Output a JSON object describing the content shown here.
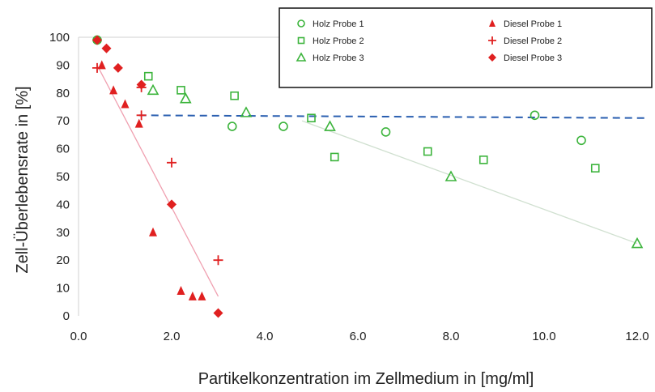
{
  "chart_data": {
    "type": "scatter",
    "title": "",
    "xlabel": "Partikelkonzentration im Zellmedium in [mg/ml]",
    "ylabel": "Zell-Überlebensrate in [%]",
    "xlim": [
      0,
      12
    ],
    "ylim": [
      0,
      100
    ],
    "x_ticks": [
      "0.0",
      "2.0",
      "4.0",
      "6.0",
      "8.0",
      "10.0",
      "12.0"
    ],
    "y_ticks": [
      "0",
      "10",
      "20",
      "30",
      "40",
      "50",
      "60",
      "70",
      "80",
      "90",
      "100"
    ],
    "grid": false,
    "legend": "top-right",
    "series": [
      {
        "name": "Holz Probe 1",
        "marker": "circle-open",
        "color": "#3cb43c",
        "points": [
          [
            0.4,
            99
          ],
          [
            3.3,
            68
          ],
          [
            4.4,
            68
          ],
          [
            6.6,
            66
          ],
          [
            9.8,
            72
          ],
          [
            10.8,
            63
          ]
        ]
      },
      {
        "name": "Holz Probe 2",
        "marker": "square-open",
        "color": "#3cb43c",
        "points": [
          [
            1.5,
            86
          ],
          [
            2.2,
            81
          ],
          [
            3.35,
            79
          ],
          [
            5.0,
            71
          ],
          [
            5.5,
            57
          ],
          [
            7.5,
            59
          ],
          [
            8.7,
            56
          ],
          [
            11.1,
            53
          ]
        ]
      },
      {
        "name": "Holz Probe 3",
        "marker": "triangle-open",
        "color": "#3cb43c",
        "points": [
          [
            1.6,
            81
          ],
          [
            2.3,
            78
          ],
          [
            3.6,
            73
          ],
          [
            5.4,
            68
          ],
          [
            8.0,
            50
          ],
          [
            12.0,
            26
          ]
        ]
      },
      {
        "name": "Diesel Probe 1",
        "marker": "triangle-filled",
        "color": "#e02020",
        "points": [
          [
            0.5,
            90
          ],
          [
            0.75,
            81
          ],
          [
            1.0,
            76
          ],
          [
            1.3,
            69
          ],
          [
            1.6,
            30
          ],
          [
            2.2,
            9
          ],
          [
            2.45,
            7
          ],
          [
            2.65,
            7
          ]
        ]
      },
      {
        "name": "Diesel Probe 2",
        "marker": "plus",
        "color": "#e02020",
        "points": [
          [
            0.4,
            89
          ],
          [
            1.35,
            82
          ],
          [
            1.35,
            72
          ],
          [
            2.0,
            55
          ],
          [
            3.0,
            20
          ]
        ]
      },
      {
        "name": "Diesel Probe 3",
        "marker": "diamond-filled",
        "color": "#e02020",
        "points": [
          [
            0.4,
            99
          ],
          [
            0.6,
            96
          ],
          [
            0.85,
            89
          ],
          [
            1.35,
            83
          ],
          [
            2.0,
            40
          ],
          [
            3.0,
            1
          ]
        ]
      }
    ],
    "lines": [
      {
        "style": "dashed",
        "color": "#2a5fb0",
        "from": [
          1.3,
          72
        ],
        "to": [
          12.2,
          71
        ]
      },
      {
        "style": "solid",
        "color": "#f0a0b0",
        "from": [
          0.4,
          90
        ],
        "to": [
          3.0,
          7
        ]
      },
      {
        "style": "solid",
        "color": "#d0e0d0",
        "from": [
          4.8,
          70
        ],
        "to": [
          12.0,
          26
        ]
      }
    ]
  },
  "colors": {
    "holz": "#3cb43c",
    "diesel": "#e02020",
    "reference_line": "#2a5fb0",
    "diesel_trend": "#f0a0b0",
    "holz_trend": "#d0e0d0"
  }
}
